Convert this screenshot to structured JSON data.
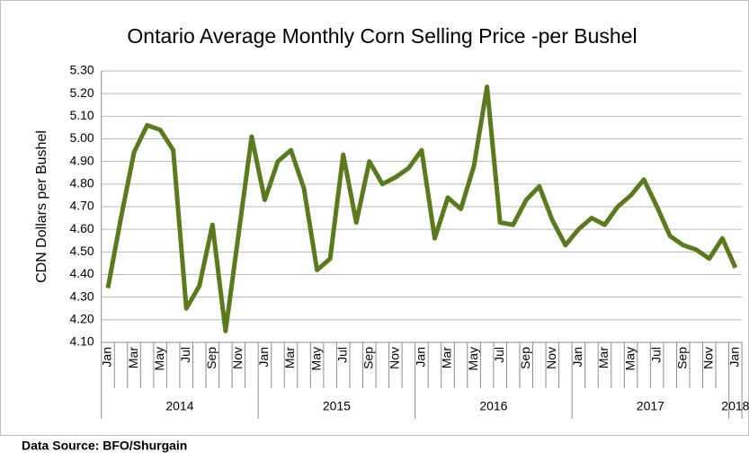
{
  "chart_data": {
    "type": "line",
    "title": "Ontario Average Monthly Corn Selling Price -per Bushel",
    "y_label": "CDN Dollars per Bushel",
    "source": "Data Source: BFO/Shurgain",
    "categories": [
      "Jan",
      null,
      "Mar",
      null,
      "May",
      null,
      "Jul",
      null,
      "Sep",
      null,
      "Nov",
      null,
      "Jan",
      null,
      "Mar",
      null,
      "May",
      null,
      "Jul",
      null,
      "Sep",
      null,
      "Nov",
      null,
      "Jan",
      null,
      "Mar",
      null,
      "May",
      null,
      "Jul",
      null,
      "Sep",
      null,
      "Nov",
      null,
      "Jan",
      null,
      "Mar",
      null,
      "May",
      null,
      "Jul",
      null,
      "Sep",
      null,
      "Nov",
      null,
      "Jan"
    ],
    "years": [
      "2014",
      "2015",
      "2016",
      "2017",
      "2018"
    ],
    "series": [
      {
        "name": "Price",
        "color": "#5b7a1d",
        "values": [
          4.34,
          4.65,
          4.94,
          5.06,
          5.04,
          4.95,
          4.25,
          4.35,
          4.62,
          4.15,
          4.58,
          5.01,
          4.73,
          4.9,
          4.95,
          4.78,
          4.42,
          4.47,
          4.93,
          4.63,
          4.9,
          4.8,
          4.83,
          4.87,
          4.95,
          4.56,
          4.74,
          4.69,
          4.88,
          5.23,
          4.63,
          4.62,
          4.73,
          4.79,
          4.64,
          4.53,
          4.6,
          4.65,
          4.62,
          4.7,
          4.75,
          4.82,
          4.7,
          4.57,
          4.53,
          4.51,
          4.47,
          4.56,
          4.43
        ]
      }
    ],
    "ylim": [
      4.1,
      5.3
    ],
    "yticks": [
      {
        "value": 4.1,
        "label": "4.10"
      },
      {
        "value": 4.2,
        "label": "4.20"
      },
      {
        "value": 4.3,
        "label": "4.30"
      },
      {
        "value": 4.4,
        "label": "4.40"
      },
      {
        "value": 4.5,
        "label": "4.50"
      },
      {
        "value": 4.6,
        "label": "4.60"
      },
      {
        "value": 4.7,
        "label": "4.70"
      },
      {
        "value": 4.8,
        "label": "4.80"
      },
      {
        "value": 4.9,
        "label": "4.90"
      },
      {
        "value": 5.0,
        "label": "5.00"
      },
      {
        "value": 5.1,
        "label": "5.10"
      },
      {
        "value": 5.2,
        "label": "5.20"
      },
      {
        "value": 5.3,
        "label": "5.30"
      }
    ],
    "grid": true
  }
}
